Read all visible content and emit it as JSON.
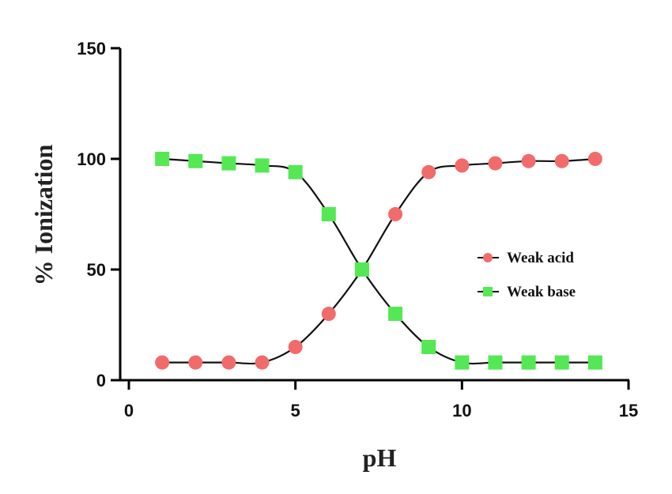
{
  "chart_data": {
    "type": "line",
    "title": "",
    "xlabel": "pH",
    "ylabel": "% Ionization",
    "xlim": [
      0,
      15
    ],
    "ylim": [
      0,
      150
    ],
    "xticks": [
      0,
      5,
      10,
      15
    ],
    "yticks": [
      0,
      50,
      100,
      150
    ],
    "grid": false,
    "legend_position": "center-right",
    "x": [
      1,
      2,
      3,
      4,
      5,
      6,
      7,
      8,
      9,
      10,
      11,
      12,
      13,
      14
    ],
    "series": [
      {
        "name": "Weak acid",
        "marker": "circle",
        "color": "#f26b6b",
        "values": [
          8,
          8,
          8,
          8,
          15,
          30,
          50,
          75,
          94,
          97,
          98,
          99,
          99,
          100
        ]
      },
      {
        "name": "Weak base",
        "marker": "square",
        "color": "#55e855",
        "values": [
          100,
          99,
          98,
          97,
          94,
          75,
          50,
          30,
          15,
          8,
          8,
          8,
          8,
          8
        ]
      }
    ]
  }
}
